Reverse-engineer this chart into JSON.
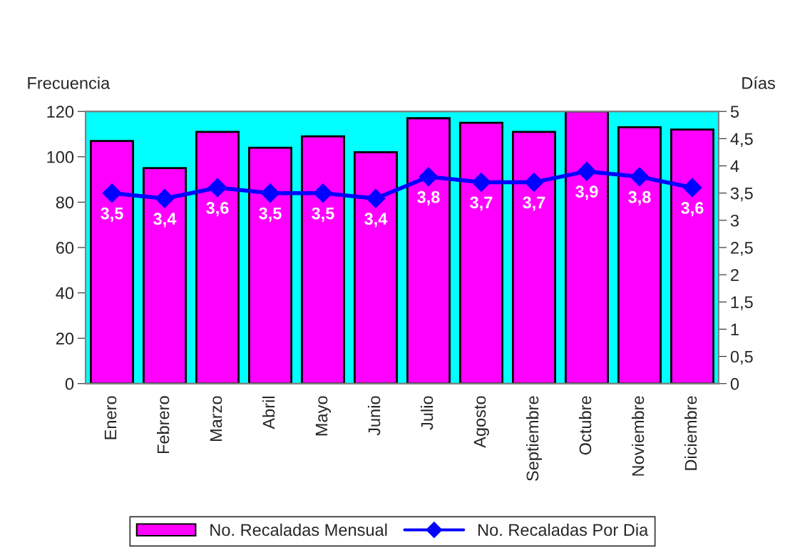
{
  "chart_data": {
    "type": "bar",
    "categories": [
      "Enero",
      "Febrero",
      "Marzo",
      "Abril",
      "Mayo",
      "Junio",
      "Julio",
      "Agosto",
      "Septiembre",
      "Octubre",
      "Noviembre",
      "Diciembre"
    ],
    "ylabel": "Frecuencia",
    "y2label": "Días",
    "ylim": [
      0,
      120
    ],
    "yticks": [
      0,
      20,
      40,
      60,
      80,
      100,
      120
    ],
    "y2lim": [
      0,
      5
    ],
    "y2ticks": [
      0,
      {
        "value": 0.5,
        "label": "0,5"
      },
      1,
      {
        "value": 1.5,
        "label": "1,5"
      },
      2,
      {
        "value": 2.5,
        "label": "2,5"
      },
      3,
      {
        "value": 3.5,
        "label": "3,5"
      },
      4,
      {
        "value": 4.5,
        "label": "4,5"
      },
      5
    ],
    "grid": false,
    "legend": "bottom",
    "bands": [
      {
        "axis": "y",
        "from": 0,
        "to": 120,
        "color": "#00ffff"
      }
    ],
    "series": [
      {
        "name": "No. Recaladas Mensual",
        "color": "#ff00ff",
        "values": [
          107,
          95,
          111,
          104,
          109,
          102,
          117,
          115,
          111,
          120,
          113,
          112
        ]
      },
      {
        "name": "No. Recaladas Por Dia",
        "type": "line",
        "axis": "y2",
        "color": "#0000ff",
        "marker": "diamond",
        "line_style": "solid",
        "values": [
          3.5,
          3.4,
          3.6,
          3.5,
          3.5,
          3.4,
          3.8,
          3.7,
          3.7,
          3.9,
          3.8,
          3.6
        ],
        "value_labels": [
          "3,5",
          "3,4",
          "3,6",
          "3,5",
          "3,5",
          "3,4",
          "3,8",
          "3,7",
          "3,7",
          "3,9",
          "3,8",
          "3,6"
        ]
      }
    ]
  }
}
